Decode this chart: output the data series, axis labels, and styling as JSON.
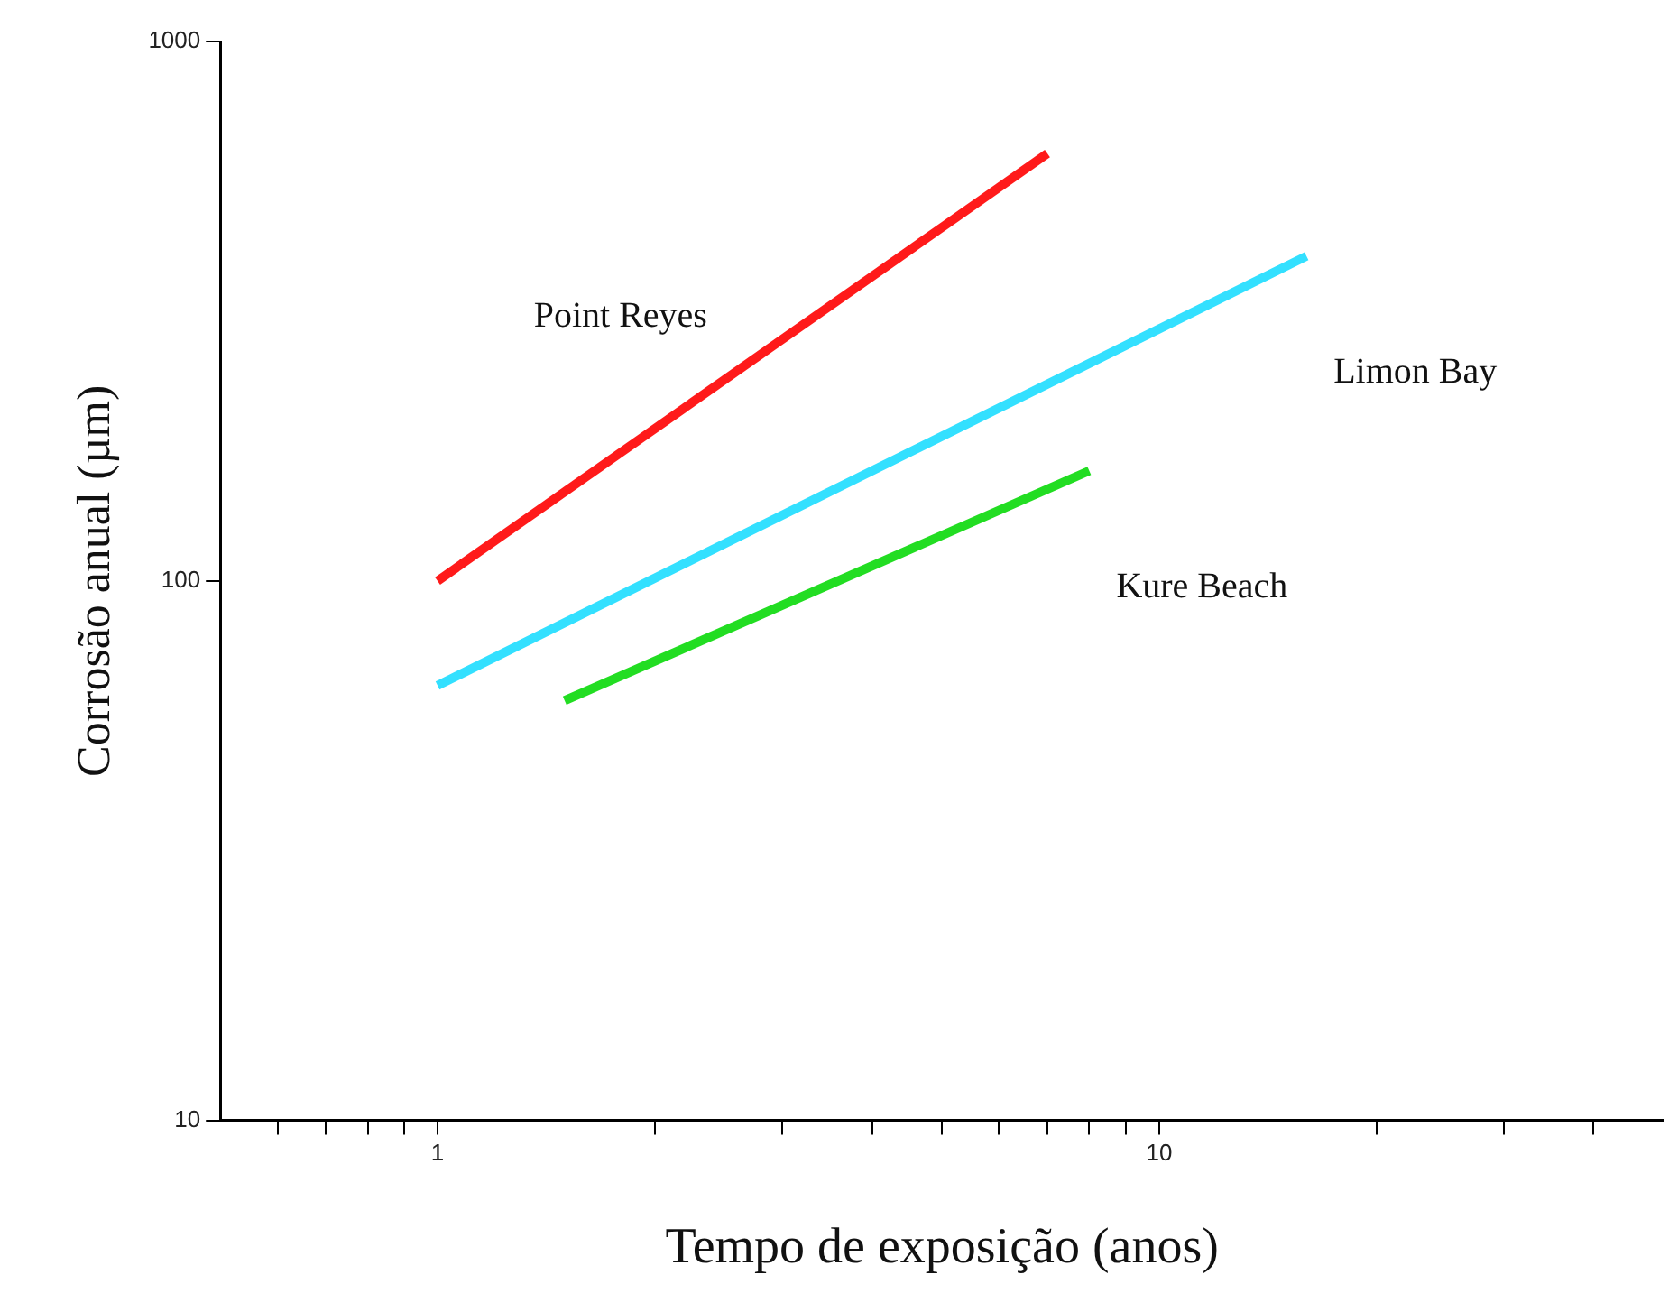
{
  "chart_data": {
    "type": "line",
    "xlabel": "Tempo de exposição (anos)",
    "ylabel": "Corrosão anual (µm)",
    "log": "xy",
    "grid": false,
    "legend": false,
    "marker": "none",
    "line_style": "solid",
    "xlim": [
      0.5,
      50
    ],
    "xticks": [
      {
        "value": 0.6,
        "label": null
      },
      {
        "value": 0.7,
        "label": null
      },
      {
        "value": 0.8,
        "label": null
      },
      {
        "value": 0.9,
        "label": null
      },
      1,
      {
        "value": 2,
        "label": null
      },
      {
        "value": 3,
        "label": null
      },
      {
        "value": 4,
        "label": null
      },
      {
        "value": 5,
        "label": null
      },
      {
        "value": 6,
        "label": null
      },
      {
        "value": 7,
        "label": null
      },
      {
        "value": 8,
        "label": null
      },
      {
        "value": 9,
        "label": null
      },
      10,
      {
        "value": 20,
        "label": null
      },
      {
        "value": 30,
        "label": null
      },
      {
        "value": 40,
        "label": null
      }
    ],
    "ylim": [
      10,
      1000
    ],
    "yticks": [
      10,
      100,
      1000
    ],
    "series": [
      {
        "name": "Point Reyes",
        "color": "#ff1a1a",
        "x": [
          1,
          7
        ],
        "values": [
          100,
          620
        ]
      },
      {
        "name": "Limon Bay",
        "color": "#33e0ff",
        "x": [
          1,
          16
        ],
        "values": [
          64,
          400
        ]
      },
      {
        "name": "Kure Beach",
        "color": "#22dd22",
        "x": [
          1.5,
          8
        ],
        "values": [
          60,
          160
        ]
      }
    ]
  }
}
